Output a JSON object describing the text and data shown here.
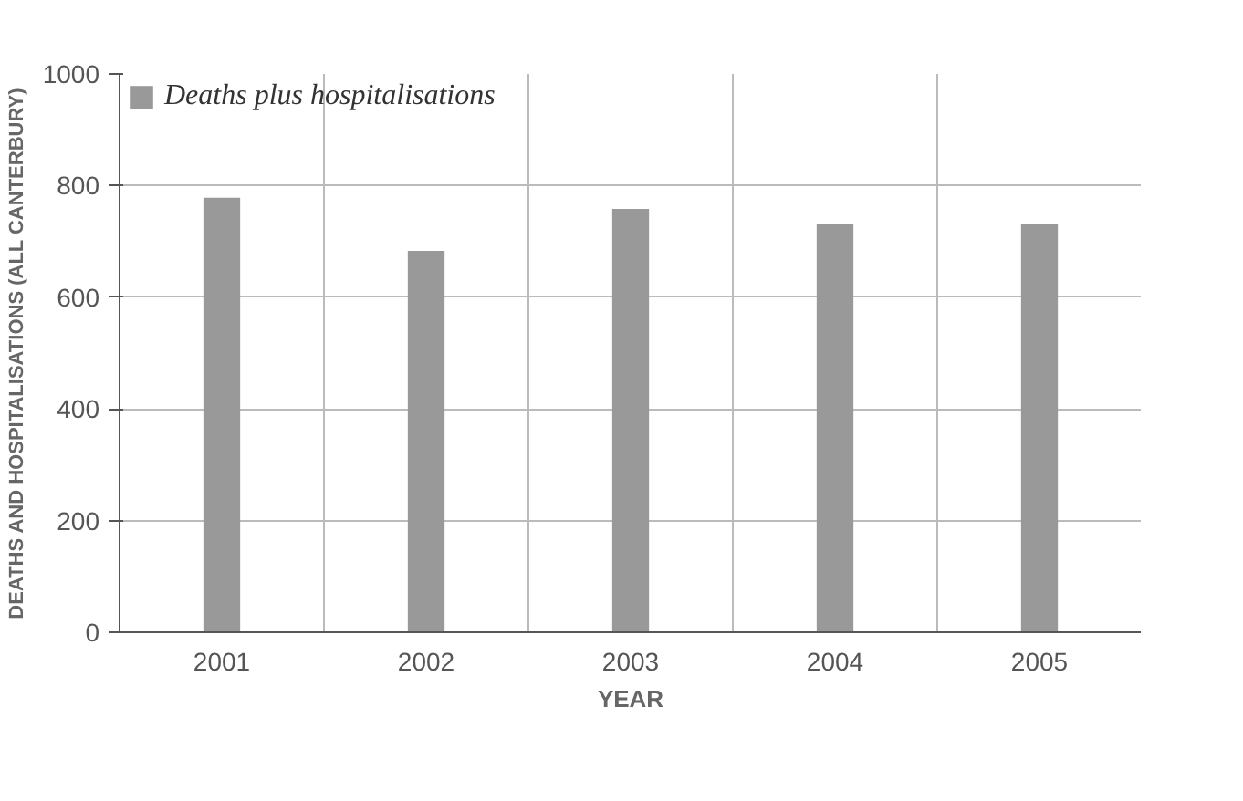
{
  "chart_data": {
    "type": "bar",
    "xlabel": "YEAR",
    "ylabel": "DEATHS AND HOSPITALISATIONS (ALL CANTERBURY)",
    "categories": [
      "2001",
      "2002",
      "2003",
      "2004",
      "2005"
    ],
    "series": [
      {
        "name": "Deaths plus hospitalisations",
        "color": "#999999",
        "values": [
          778,
          683,
          758,
          732,
          732
        ]
      }
    ],
    "ylim": [
      0,
      1000
    ],
    "yticks": [
      0,
      200,
      400,
      600,
      800,
      1000
    ],
    "grid": true,
    "legend": "top left"
  }
}
